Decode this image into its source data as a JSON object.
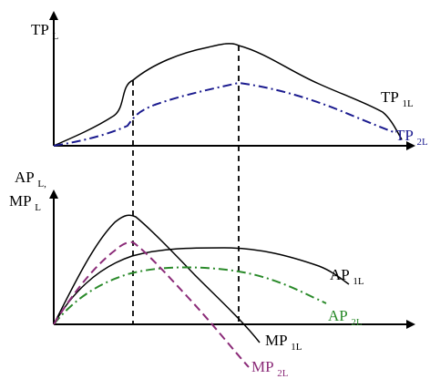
{
  "colors": {
    "black": "#000000",
    "navy": "#1b1b8f",
    "green": "#2a8a2a",
    "purple": "#8b2b78"
  },
  "top_panel": {
    "y_axis_label": {
      "main": "TP",
      "sub": "L"
    },
    "curves": [
      {
        "label_main": "TP",
        "label_sub": "1L",
        "style": "solid",
        "color": "#000000"
      },
      {
        "label_main": "TP",
        "label_sub": "2L",
        "style": "dash-dot",
        "color": "#1b1b8f"
      }
    ]
  },
  "bottom_panel": {
    "y_axis_label_line1": {
      "main": "AP",
      "sub": "L,"
    },
    "y_axis_label_line2": {
      "main": "MP",
      "sub": "L"
    },
    "curves": [
      {
        "label_main": "AP",
        "label_sub": "1L",
        "style": "solid",
        "color": "#000000"
      },
      {
        "label_main": "AP",
        "label_sub": "2L",
        "style": "dash-dot",
        "color": "#2a8a2a"
      },
      {
        "label_main": "MP",
        "label_sub": "1L",
        "style": "solid",
        "color": "#000000"
      },
      {
        "label_main": "MP",
        "label_sub": "2L",
        "style": "dashed",
        "color": "#8b2b78"
      }
    ]
  }
}
